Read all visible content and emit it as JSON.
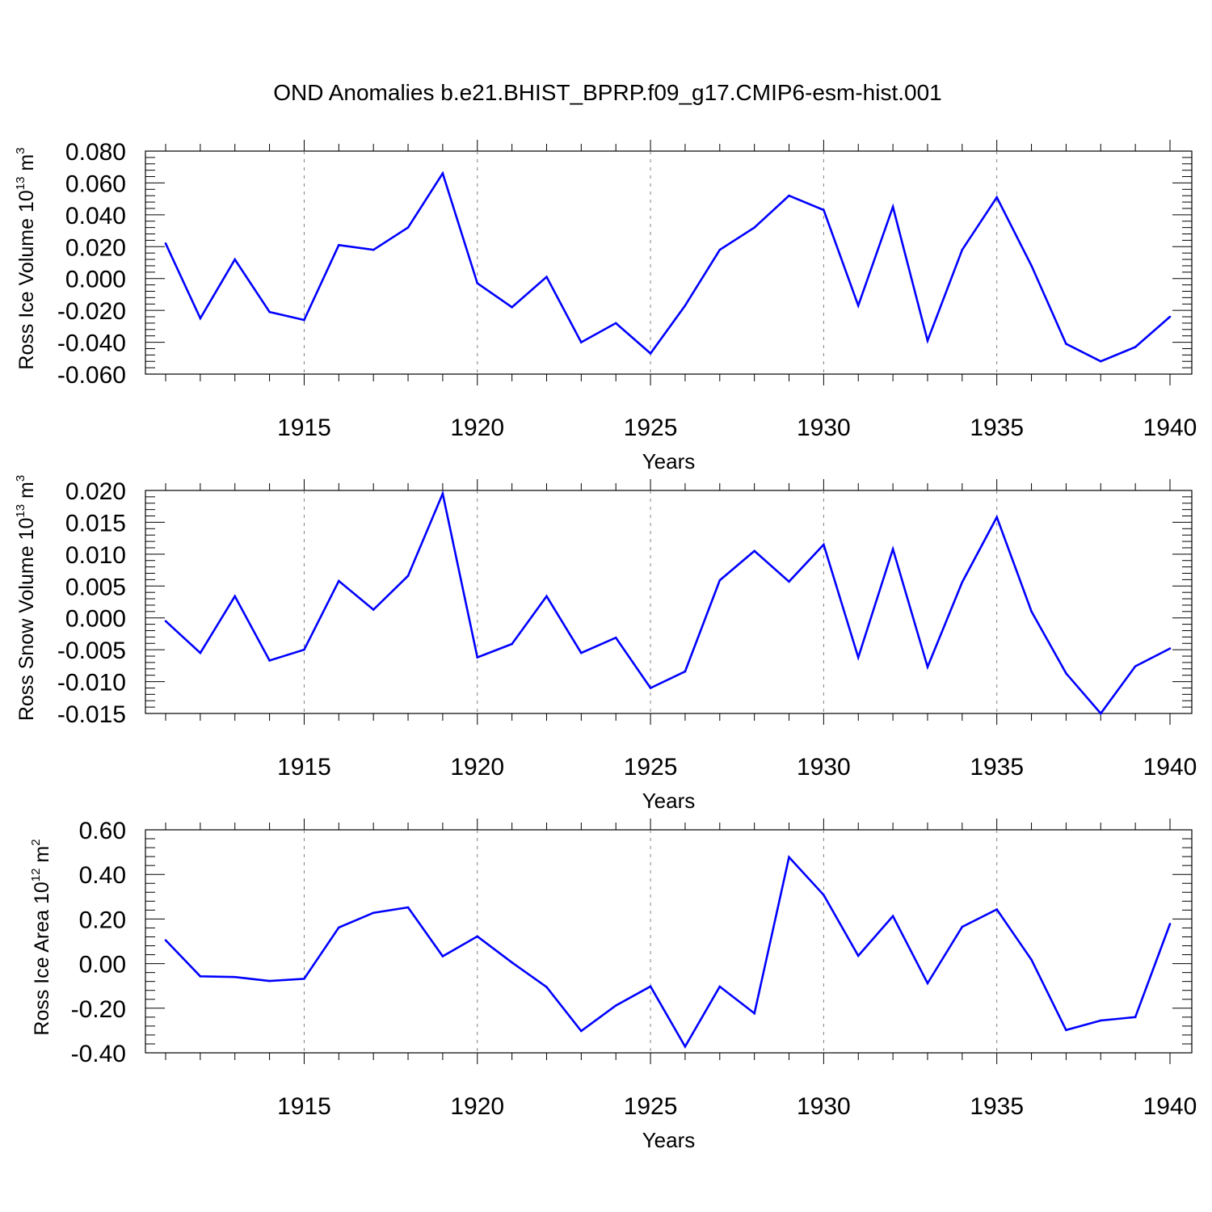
{
  "title": "OND Anomalies b.e21.BHIST_BPRP.f09_g17.CMIP6-esm-hist.001",
  "colors": {
    "series": "#0000ff",
    "axis": "#000000",
    "grid": "#808080"
  },
  "chart_data": [
    {
      "type": "line",
      "ylabel": {
        "text": "Ross Ice Volume 10",
        "exp": "13",
        "unit": " m",
        "unit_exp": "3"
      },
      "xlabel": "Years",
      "xlim": [
        1911,
        1940
      ],
      "ylim": [
        -0.06,
        0.08
      ],
      "yticks": [
        -0.06,
        -0.04,
        -0.02,
        0.0,
        0.02,
        0.04,
        0.06,
        0.08
      ],
      "ytick_labels": [
        "-0.060",
        "-0.040",
        "-0.020",
        "0.000",
        "0.020",
        "0.040",
        "0.060",
        "0.080"
      ],
      "xticks": [
        1915,
        1920,
        1925,
        1930,
        1935,
        1940
      ],
      "xtick_labels": [
        "1915",
        "1920",
        "1925",
        "1930",
        "1935",
        "1940"
      ],
      "x": [
        1911,
        1912,
        1913,
        1914,
        1915,
        1916,
        1917,
        1918,
        1919,
        1920,
        1921,
        1922,
        1923,
        1924,
        1925,
        1926,
        1927,
        1928,
        1929,
        1930,
        1931,
        1932,
        1933,
        1934,
        1935,
        1936,
        1937,
        1938,
        1939,
        1940
      ],
      "values": [
        0.022,
        -0.025,
        0.012,
        -0.021,
        -0.026,
        0.021,
        0.018,
        0.032,
        0.066,
        -0.003,
        -0.018,
        0.001,
        -0.04,
        -0.028,
        -0.047,
        -0.017,
        0.018,
        0.032,
        0.052,
        0.043,
        -0.017,
        0.045,
        -0.039,
        0.018,
        0.051,
        0.008,
        -0.041,
        -0.052,
        -0.043,
        -0.024
      ]
    },
    {
      "type": "line",
      "ylabel": {
        "text": "Ross Snow Volume 10",
        "exp": "13",
        "unit": " m",
        "unit_exp": "3"
      },
      "xlabel": "Years",
      "xlim": [
        1911,
        1940
      ],
      "ylim": [
        -0.015,
        0.02
      ],
      "yticks": [
        -0.015,
        -0.01,
        -0.005,
        0.0,
        0.005,
        0.01,
        0.015,
        0.02
      ],
      "ytick_labels": [
        "-0.015",
        "-0.010",
        "-0.005",
        "0.000",
        "0.005",
        "0.010",
        "0.015",
        "0.020"
      ],
      "xticks": [
        1915,
        1920,
        1925,
        1930,
        1935,
        1940
      ],
      "xtick_labels": [
        "1915",
        "1920",
        "1925",
        "1930",
        "1935",
        "1940"
      ],
      "x": [
        1911,
        1912,
        1913,
        1914,
        1915,
        1916,
        1917,
        1918,
        1919,
        1920,
        1921,
        1922,
        1923,
        1924,
        1925,
        1926,
        1927,
        1928,
        1929,
        1930,
        1931,
        1932,
        1933,
        1934,
        1935,
        1936,
        1937,
        1938,
        1939,
        1940
      ],
      "values": [
        -0.0005,
        -0.0055,
        0.0034,
        -0.0067,
        -0.005,
        0.0058,
        0.0013,
        0.0066,
        0.0195,
        -0.0062,
        -0.0041,
        0.0034,
        -0.0055,
        -0.0031,
        -0.011,
        -0.0084,
        0.0059,
        0.0105,
        0.0057,
        0.0115,
        -0.0062,
        0.0108,
        -0.0077,
        0.0056,
        0.0158,
        0.001,
        -0.0087,
        -0.015,
        -0.0076,
        -0.0048
      ]
    },
    {
      "type": "line",
      "ylabel": {
        "text": "Ross Ice Area 10",
        "exp": "12",
        "unit": " m",
        "unit_exp": "2"
      },
      "xlabel": "Years",
      "xlim": [
        1911,
        1940
      ],
      "ylim": [
        -0.4,
        0.6
      ],
      "yticks": [
        -0.4,
        -0.2,
        0.0,
        0.2,
        0.4,
        0.6
      ],
      "ytick_labels": [
        "-0.40",
        "-0.20",
        "0.00",
        "0.20",
        "0.40",
        "0.60"
      ],
      "xticks": [
        1915,
        1920,
        1925,
        1930,
        1935,
        1940
      ],
      "xtick_labels": [
        "1915",
        "1920",
        "1925",
        "1930",
        "1935",
        "1940"
      ],
      "x": [
        1911,
        1912,
        1913,
        1914,
        1915,
        1916,
        1917,
        1918,
        1919,
        1920,
        1921,
        1922,
        1923,
        1924,
        1925,
        1926,
        1927,
        1928,
        1929,
        1930,
        1931,
        1932,
        1933,
        1934,
        1935,
        1936,
        1937,
        1938,
        1939,
        1940
      ],
      "values": [
        0.105,
        -0.057,
        -0.06,
        -0.078,
        -0.068,
        0.162,
        0.228,
        0.252,
        0.033,
        0.122,
        0.005,
        -0.105,
        -0.302,
        -0.188,
        -0.102,
        -0.372,
        -0.103,
        -0.223,
        0.477,
        0.308,
        0.035,
        0.213,
        -0.088,
        0.165,
        0.243,
        0.017,
        -0.298,
        -0.255,
        -0.24,
        0.178
      ]
    }
  ]
}
